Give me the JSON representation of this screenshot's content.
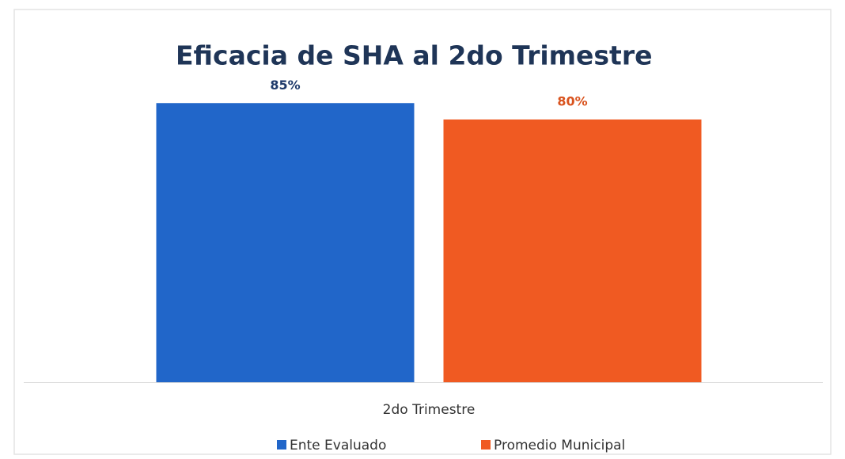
{
  "chart_data": {
    "type": "bar",
    "title": "Eficacia de SHA al 2do Trimestre",
    "categories": [
      "2do Trimestre"
    ],
    "series": [
      {
        "name": "Ente Evaluado",
        "color": "#2166c9",
        "values": [
          85
        ],
        "value_labels": [
          "85%"
        ],
        "label_color": "#1f3a6b"
      },
      {
        "name": "Promedio Municipal",
        "color": "#f05a22",
        "values": [
          80
        ],
        "value_labels": [
          "80%"
        ],
        "label_color": "#d9531e"
      }
    ]
  }
}
